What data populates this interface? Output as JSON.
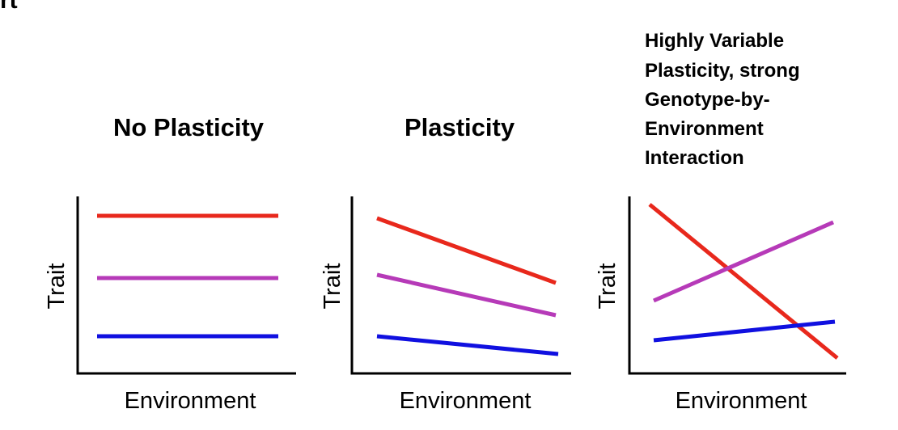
{
  "header": "rt",
  "panels": [
    {
      "title": "No Plasticity",
      "y_label": "Trait",
      "x_label": "Environment"
    },
    {
      "title": "Plasticity",
      "y_label": "Trait",
      "x_label": "Environment"
    },
    {
      "title_lines": [
        "Highly Variable",
        "Plasticity, strong",
        "Genotype-by-",
        "Environment",
        "Interaction"
      ],
      "y_label": "Trait",
      "x_label": "Environment"
    }
  ]
}
